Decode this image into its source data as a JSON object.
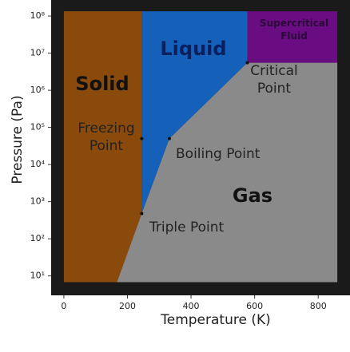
{
  "chart_data": {
    "type": "phase",
    "xlabel": "Temperature (K)",
    "ylabel": "Pressure (Pa)",
    "xlim": [
      -40,
      900
    ],
    "ylim": [
      3,
      270000000
    ],
    "log_y": true,
    "xticks": [
      0,
      200,
      400,
      600,
      800
    ],
    "yticks": [
      {
        "value": 10,
        "label": "10¹"
      },
      {
        "value": 100,
        "label": "10²"
      },
      {
        "value": 1000,
        "label": "10³"
      },
      {
        "value": 10000,
        "label": "10⁴"
      },
      {
        "value": 100000,
        "label": "10⁵"
      },
      {
        "value": 1000000,
        "label": "10⁶"
      },
      {
        "value": 10000000,
        "label": "10⁷"
      },
      {
        "value": 100000000,
        "label": "10⁸"
      }
    ],
    "background": "#1a1a1a",
    "regions": [
      {
        "name": "Solid",
        "color": "#8a4a0c",
        "x": [
          0,
          245,
          245,
          167,
          0
        ],
        "y": [
          134000000,
          134000000,
          480,
          6.8,
          6.8
        ]
      },
      {
        "name": "Liquid",
        "color": "#1560b8",
        "x": [
          245,
          577,
          577,
          332,
          245
        ],
        "y": [
          134000000,
          134000000,
          5500000,
          50000,
          480
        ]
      },
      {
        "name": "Supercritical Fluid",
        "color": "#6a0d82",
        "x": [
          577,
          860,
          860,
          577
        ],
        "y": [
          134000000,
          134000000,
          5500000,
          5500000
        ]
      },
      {
        "name": "Gas",
        "color": "#8a8a8a",
        "x": [
          167,
          245,
          332,
          577,
          860,
          860
        ],
        "y": [
          6.8,
          480,
          50000,
          5500000,
          5500000,
          6.8
        ]
      }
    ],
    "points": [
      {
        "name": "Critical Point",
        "x": 577,
        "y": 5500000
      },
      {
        "name": "Freezing Point",
        "x": 245,
        "y": 50000
      },
      {
        "name": "Boiling Point",
        "x": 332,
        "y": 50000
      },
      {
        "name": "Triple Point",
        "x": 245,
        "y": 480
      }
    ]
  }
}
